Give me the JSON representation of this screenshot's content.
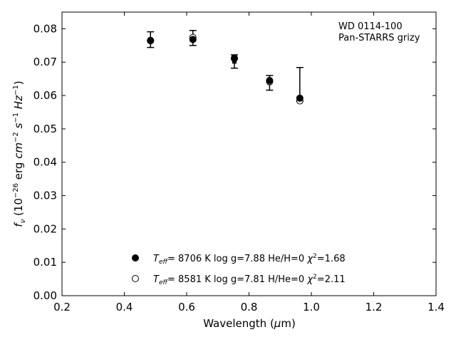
{
  "chart_data": {
    "type": "scatter",
    "annotation": [
      "WD 0114-100",
      "Pan-STARRS grizy"
    ],
    "xlabel": "Wavelength (μm)",
    "ylabel": "f_ν (10^-26 erg cm^-2 s^-1 Hz^-1)",
    "xlim": [
      0.2,
      1.4
    ],
    "ylim": [
      0.0,
      0.085
    ],
    "xticks": [
      "0.2",
      "0.4",
      "0.6",
      "0.8",
      "1.0",
      "1.2",
      "1.4"
    ],
    "yticks": [
      "0.00",
      "0.01",
      "0.02",
      "0.03",
      "0.04",
      "0.05",
      "0.06",
      "0.07",
      "0.08"
    ],
    "grid": false,
    "legend_position": "bottom-center",
    "observed": {
      "x": [
        0.484,
        0.62,
        0.753,
        0.866,
        0.963
      ],
      "y": [
        0.0768,
        0.0772,
        0.0702,
        0.0638,
        0.0592
      ],
      "yerr_low": [
        0.0744,
        0.075,
        0.0682,
        0.0616,
        0.0583
      ],
      "yerr_high": [
        0.0791,
        0.0795,
        0.0722,
        0.066,
        0.0684
      ]
    },
    "series": [
      {
        "marker": "filled-circle",
        "legend": "T_eff = 8706 K  log g=7.88  He/H=0  χ²=1.68",
        "legend_parts": {
          "teff": "8706 K",
          "logg": "log g=7.88",
          "comp": "He/H=0",
          "chi2": "=1.68"
        },
        "x": [
          0.484,
          0.62,
          0.753,
          0.866,
          0.963
        ],
        "y": [
          0.0765,
          0.0768,
          0.0711,
          0.0645,
          0.0592
        ]
      },
      {
        "marker": "open-circle",
        "legend": "T_eff = 8581 K  log g=7.81  H/He=0  χ²=2.11",
        "legend_parts": {
          "teff": "8581 K",
          "logg": "log g=7.81",
          "comp": "H/He=0",
          "chi2": "=2.11"
        },
        "x": [
          0.484,
          0.62,
          0.753,
          0.866,
          0.963
        ],
        "y": [
          0.0764,
          0.0774,
          0.0712,
          0.0642,
          0.0584
        ]
      }
    ]
  }
}
